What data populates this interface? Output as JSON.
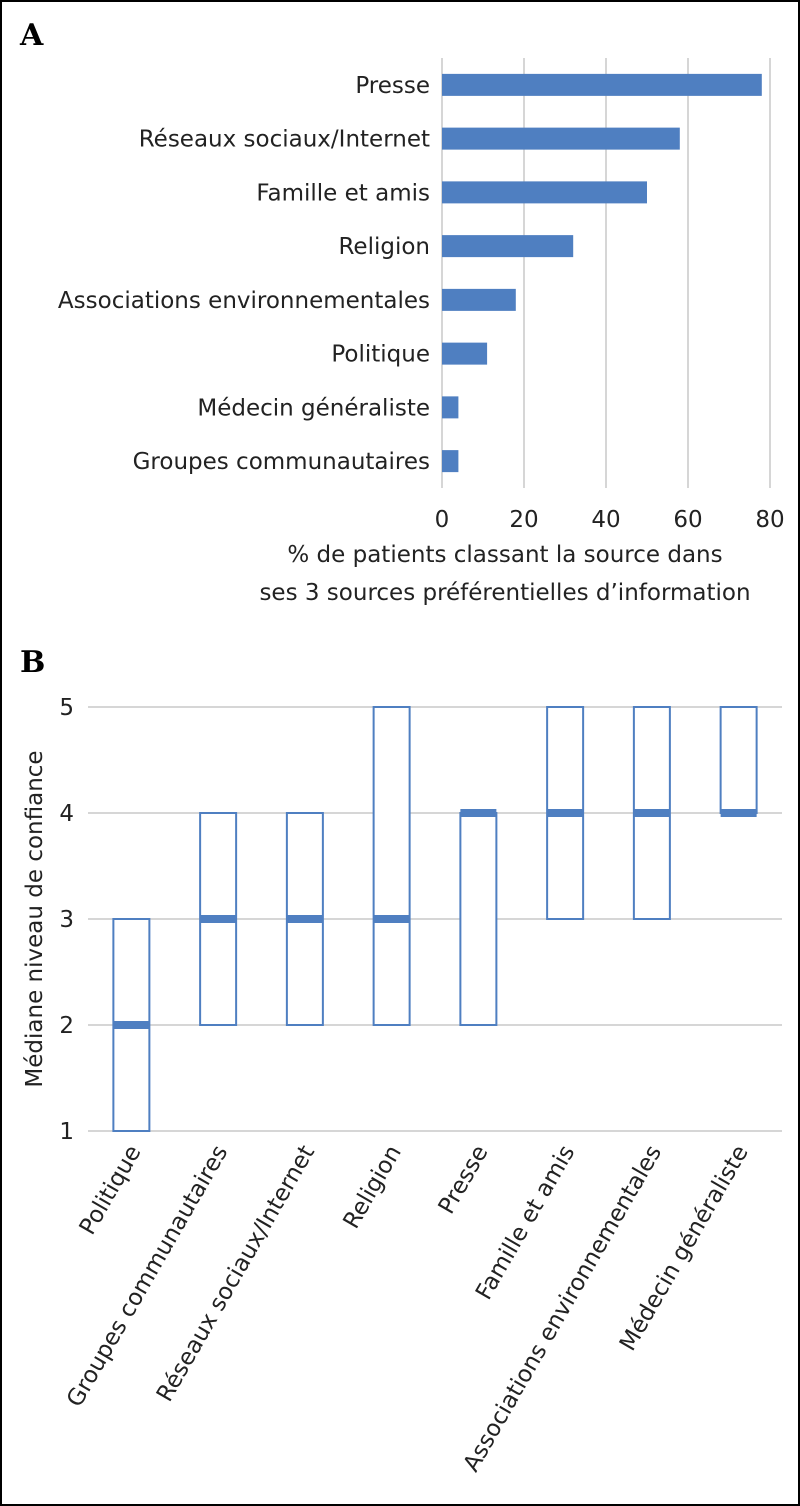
{
  "panels": {
    "a_label": "A",
    "b_label": "B"
  },
  "chart_data": [
    {
      "type": "bar",
      "orientation": "horizontal",
      "categories": [
        "Presse",
        "Réseaux sociaux/Internet",
        "Famille et amis",
        "Religion",
        "Associations environnementales",
        "Politique",
        "Médecin généraliste",
        "Groupes communautaires"
      ],
      "values": [
        78,
        58,
        50,
        32,
        18,
        11,
        4,
        4
      ],
      "xlabel": [
        "% de patients classant la source dans",
        "ses 3 sources préférentielles d’information"
      ],
      "xlim": [
        0,
        80
      ],
      "xticks": [
        0,
        20,
        40,
        60,
        80
      ],
      "grid": true,
      "color": "#4f7fc1"
    },
    {
      "type": "box",
      "categories": [
        "Politique",
        "Groupes communautaires",
        "Réseaux sociaux/Internet",
        "Religion",
        "Presse",
        "Famille et amis",
        "Associations environnementales",
        "Médecin généraliste"
      ],
      "boxes": [
        {
          "q1": 1,
          "median": 2,
          "q3": 3
        },
        {
          "q1": 2,
          "median": 3,
          "q3": 4
        },
        {
          "q1": 2,
          "median": 3,
          "q3": 4
        },
        {
          "q1": 2,
          "median": 3,
          "q3": 5
        },
        {
          "q1": 2,
          "median": 4,
          "q3": 4
        },
        {
          "q1": 3,
          "median": 4,
          "q3": 5
        },
        {
          "q1": 3,
          "median": 4,
          "q3": 5
        },
        {
          "q1": 4,
          "median": 4,
          "q3": 5
        }
      ],
      "ylabel": "Médiane niveau de confiance",
      "ylim": [
        1,
        5
      ],
      "yticks": [
        1,
        2,
        3,
        4,
        5
      ],
      "grid": true,
      "color": "#4f7fc1"
    }
  ]
}
